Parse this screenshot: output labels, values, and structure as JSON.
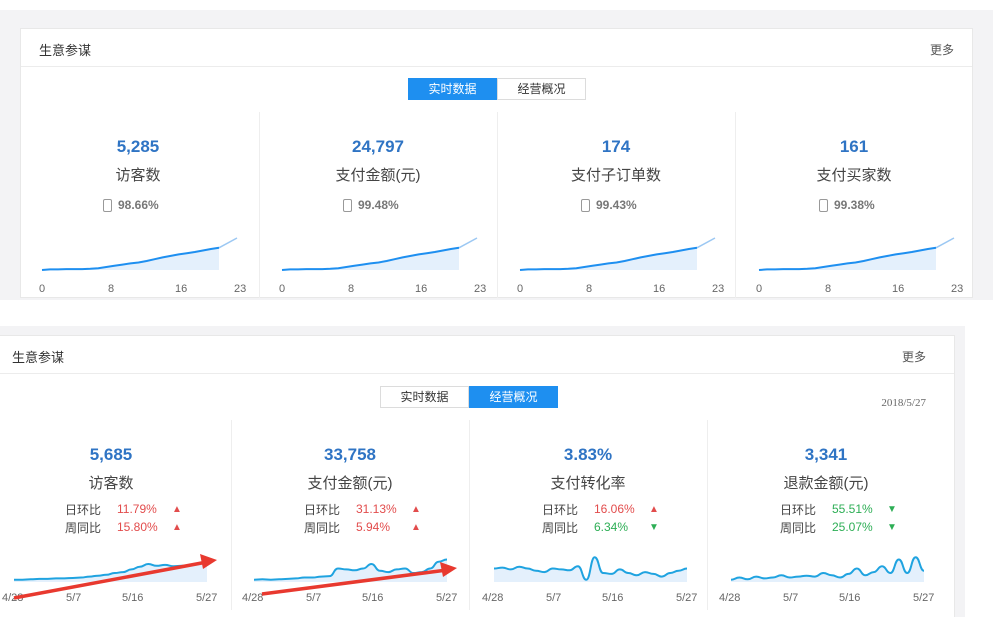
{
  "top": {
    "title": "生意参谋",
    "more": "更多",
    "tabs": [
      "实时数据",
      "经营概况"
    ],
    "active_tab": 0,
    "metrics": [
      {
        "value": "5,285",
        "label": "访客数",
        "pct": "98.66%",
        "icon": "phone-icon"
      },
      {
        "value": "24,797",
        "label": "支付金额(元)",
        "pct": "99.48%",
        "icon": "phone-icon"
      },
      {
        "value": "174",
        "label": "支付子订单数",
        "pct": "99.43%",
        "icon": "phone-icon"
      },
      {
        "value": "161",
        "label": "支付买家数",
        "pct": "99.38%",
        "icon": "phone-icon"
      }
    ],
    "x_ticks": [
      "0",
      "8",
      "16",
      "23"
    ],
    "line_color": "#1e8ff0"
  },
  "bottom": {
    "title": "生意参谋",
    "more": "更多",
    "tabs": [
      "实时数据",
      "经营概况"
    ],
    "active_tab": 1,
    "date": "2018/5/27",
    "cmp_labels": [
      "日环比",
      "周同比"
    ],
    "metrics": [
      {
        "value": "5,685",
        "label": "访客数",
        "day": "11.79%",
        "day_dir": "up",
        "week": "15.80%",
        "week_dir": "up"
      },
      {
        "value": "33,758",
        "label": "支付金额(元)",
        "day": "31.13%",
        "day_dir": "up",
        "week": "5.94%",
        "week_dir": "up"
      },
      {
        "value": "3.83%",
        "label": "支付转化率",
        "day": "16.06%",
        "day_dir": "up",
        "week": "6.34%",
        "week_dir": "down"
      },
      {
        "value": "3,341",
        "label": "退款金额(元)",
        "day": "55.51%",
        "day_dir": "down",
        "week": "25.07%",
        "week_dir": "down"
      }
    ],
    "x_ticks": [
      "4/28",
      "5/7",
      "5/16",
      "5/27"
    ],
    "up_color": "#e24c4c",
    "down_color": "#2dae55",
    "annotation_arrow_color": "#e8392f"
  }
}
